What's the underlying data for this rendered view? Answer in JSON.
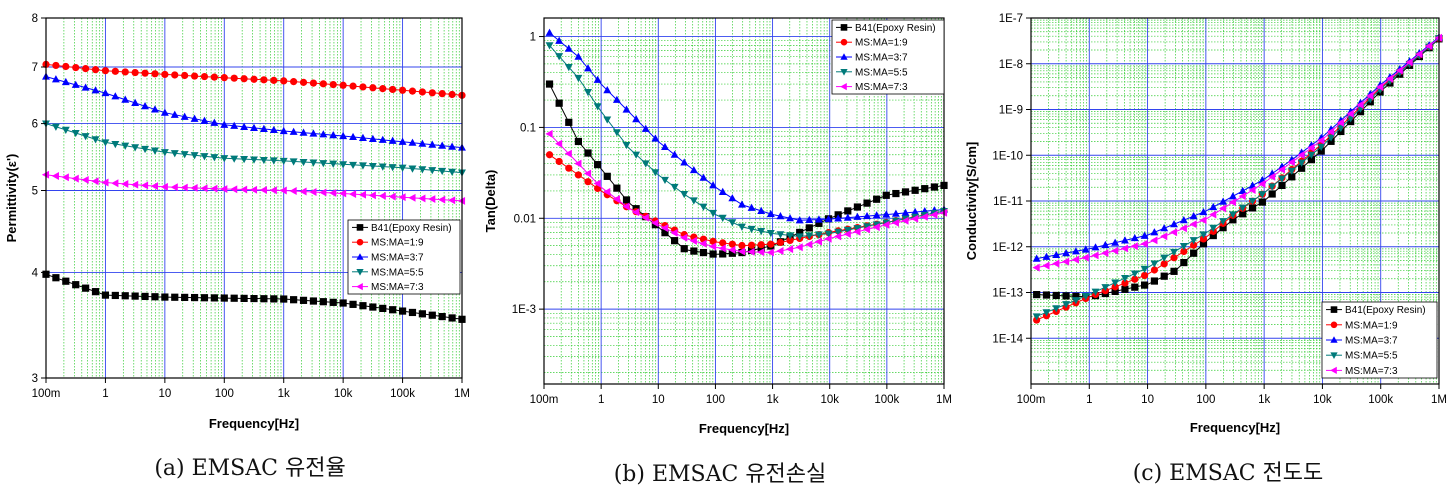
{
  "chart_data": [
    {
      "type": "line",
      "caption": "(a) EMSAC 유전율",
      "xlabel": "Frequency[Hz]",
      "ylabel": "Permittivity(ε')",
      "x_scale": "log",
      "y_scale": "log",
      "xlim": [
        0.1,
        1000000
      ],
      "ylim": [
        3,
        8
      ],
      "x_ticks": [
        {
          "v": 0.1,
          "label": "100m"
        },
        {
          "v": 1,
          "label": "1"
        },
        {
          "v": 10,
          "label": "10"
        },
        {
          "v": 100,
          "label": "100"
        },
        {
          "v": 1000,
          "label": "1k"
        },
        {
          "v": 10000,
          "label": "10k"
        },
        {
          "v": 100000,
          "label": "100k"
        },
        {
          "v": 1000000,
          "label": "1M"
        }
      ],
      "y_ticks": [
        {
          "v": 3,
          "label": "3"
        },
        {
          "v": 4,
          "label": "4"
        },
        {
          "v": 5,
          "label": "5"
        },
        {
          "v": 6,
          "label": "6"
        },
        {
          "v": 7,
          "label": "7"
        },
        {
          "v": 8,
          "label": "8"
        }
      ],
      "legend_position": "middle-right",
      "grid": true,
      "series": [
        {
          "name": "B41(Epoxy Resin)",
          "color": "#000000",
          "marker": "square",
          "x": [
            0.1,
            1,
            10,
            100,
            1000,
            10000,
            100000,
            1000000
          ],
          "y": [
            3.98,
            3.76,
            3.74,
            3.73,
            3.72,
            3.68,
            3.6,
            3.52
          ]
        },
        {
          "name": "MS:MA=1:9",
          "color": "#ff0000",
          "marker": "circle",
          "x": [
            0.1,
            1,
            10,
            100,
            1000,
            10000,
            100000,
            1000000
          ],
          "y": [
            7.05,
            6.93,
            6.86,
            6.8,
            6.74,
            6.66,
            6.57,
            6.48
          ]
        },
        {
          "name": "MS:MA=3:7",
          "color": "#0000ff",
          "marker": "triangle-up",
          "x": [
            0.1,
            1,
            10,
            100,
            1000,
            10000,
            100000,
            1000000
          ],
          "y": [
            6.82,
            6.52,
            6.18,
            5.98,
            5.88,
            5.8,
            5.71,
            5.62
          ]
        },
        {
          "name": "MS:MA=5:5",
          "color": "#007a7a",
          "marker": "triangle-down",
          "x": [
            0.1,
            1,
            10,
            100,
            1000,
            10000,
            100000,
            1000000
          ],
          "y": [
            6.0,
            5.7,
            5.55,
            5.46,
            5.42,
            5.37,
            5.32,
            5.25
          ]
        },
        {
          "name": "MS:MA=7:3",
          "color": "#ff00ff",
          "marker": "triangle-left",
          "x": [
            0.1,
            1,
            10,
            100,
            1000,
            10000,
            100000,
            1000000
          ],
          "y": [
            5.22,
            5.11,
            5.05,
            5.02,
            5.0,
            4.96,
            4.91,
            4.86
          ]
        }
      ]
    },
    {
      "type": "line",
      "caption": "(b) EMSAC 유전손실",
      "xlabel": "Frequency[Hz]",
      "ylabel": "Tan(Delta)",
      "x_scale": "log",
      "y_scale": "log",
      "xlim": [
        0.1,
        1000000
      ],
      "ylim": [
        0.00015,
        1.6
      ],
      "x_ticks": [
        {
          "v": 0.1,
          "label": "100m"
        },
        {
          "v": 1,
          "label": "1"
        },
        {
          "v": 10,
          "label": "10"
        },
        {
          "v": 100,
          "label": "100"
        },
        {
          "v": 1000,
          "label": "1k"
        },
        {
          "v": 10000,
          "label": "10k"
        },
        {
          "v": 100000,
          "label": "100k"
        },
        {
          "v": 1000000,
          "label": "1M"
        }
      ],
      "y_ticks": [
        {
          "v": 0.001,
          "label": "1E-3"
        },
        {
          "v": 0.01,
          "label": "0.01"
        },
        {
          "v": 0.1,
          "label": "0.1"
        },
        {
          "v": 1,
          "label": "1"
        }
      ],
      "legend_position": "top-right",
      "grid": true,
      "series": [
        {
          "name": "B41(Epoxy Resin)",
          "color": "#000000",
          "marker": "square",
          "x": [
            0.125,
            0.4,
            1,
            3,
            10,
            30,
            100,
            300,
            1000,
            3000,
            10000,
            100000,
            1000000
          ],
          "y": [
            0.3,
            0.07,
            0.035,
            0.015,
            0.008,
            0.0045,
            0.004,
            0.0042,
            0.005,
            0.007,
            0.01,
            0.018,
            0.023
          ]
        },
        {
          "name": "MS:MA=1:9",
          "color": "#ff0000",
          "marker": "circle",
          "x": [
            0.125,
            0.4,
            1,
            3,
            10,
            30,
            100,
            300,
            1000,
            3000,
            10000,
            100000,
            1000000
          ],
          "y": [
            0.05,
            0.03,
            0.02,
            0.013,
            0.009,
            0.0065,
            0.0055,
            0.005,
            0.0052,
            0.006,
            0.007,
            0.009,
            0.012
          ]
        },
        {
          "name": "MS:MA=3:7",
          "color": "#0000ff",
          "marker": "triangle-up",
          "x": [
            0.125,
            0.4,
            1,
            3,
            10,
            30,
            100,
            300,
            1000,
            3000,
            10000,
            100000,
            1000000
          ],
          "y": [
            1.1,
            0.6,
            0.3,
            0.15,
            0.07,
            0.04,
            0.022,
            0.014,
            0.011,
            0.0095,
            0.0098,
            0.011,
            0.0125
          ]
        },
        {
          "name": "MS:MA=5:5",
          "color": "#007a7a",
          "marker": "triangle-down",
          "x": [
            0.125,
            0.4,
            1,
            3,
            10,
            30,
            100,
            300,
            1000,
            3000,
            10000,
            100000,
            1000000
          ],
          "y": [
            0.8,
            0.35,
            0.15,
            0.06,
            0.03,
            0.018,
            0.011,
            0.008,
            0.0068,
            0.0063,
            0.0068,
            0.009,
            0.012
          ]
        },
        {
          "name": "MS:MA=7:3",
          "color": "#ff00ff",
          "marker": "triangle-left",
          "x": [
            0.125,
            0.4,
            1,
            3,
            10,
            30,
            100,
            300,
            1000,
            3000,
            10000,
            100000,
            1000000
          ],
          "y": [
            0.085,
            0.04,
            0.022,
            0.013,
            0.0085,
            0.006,
            0.0048,
            0.0043,
            0.0042,
            0.0048,
            0.006,
            0.0085,
            0.0115
          ]
        }
      ]
    },
    {
      "type": "line",
      "caption": "(c) EMSAC 전도도",
      "xlabel": "Frequency[Hz]",
      "ylabel": "Conductivity[S/cm]",
      "x_scale": "log",
      "y_scale": "log",
      "xlim": [
        0.1,
        1000000
      ],
      "ylim": [
        1e-15,
        1e-07
      ],
      "x_ticks": [
        {
          "v": 0.1,
          "label": "100m"
        },
        {
          "v": 1,
          "label": "1"
        },
        {
          "v": 10,
          "label": "10"
        },
        {
          "v": 100,
          "label": "100"
        },
        {
          "v": 1000,
          "label": "1k"
        },
        {
          "v": 10000,
          "label": "10k"
        },
        {
          "v": 100000,
          "label": "100k"
        },
        {
          "v": 1000000,
          "label": "1M"
        }
      ],
      "y_ticks": [
        {
          "v": 1e-14,
          "label": "1E-14"
        },
        {
          "v": 1e-13,
          "label": "1E-13"
        },
        {
          "v": 1e-12,
          "label": "1E-12"
        },
        {
          "v": 1e-11,
          "label": "1E-11"
        },
        {
          "v": 1e-10,
          "label": "1E-10"
        },
        {
          "v": 1e-09,
          "label": "1E-9"
        },
        {
          "v": 1e-08,
          "label": "1E-8"
        },
        {
          "v": 1e-07,
          "label": "1E-7"
        }
      ],
      "legend_position": "bottom-right",
      "grid": true,
      "series": [
        {
          "name": "B41(Epoxy Resin)",
          "color": "#000000",
          "marker": "square",
          "x": [
            0.125,
            1,
            10,
            30,
            100,
            300,
            1000,
            10000,
            100000,
            1000000
          ],
          "y": [
            9e-14,
            8e-14,
            1.5e-13,
            3e-13,
            1.3e-12,
            4e-12,
            1e-11,
            1.3e-10,
            2.5e-09,
            3.5e-08
          ]
        },
        {
          "name": "MS:MA=1:9",
          "color": "#ff0000",
          "marker": "circle",
          "x": [
            0.125,
            1,
            10,
            30,
            100,
            300,
            1000,
            10000,
            100000,
            1000000
          ],
          "y": [
            2.5e-14,
            8e-14,
            2.5e-13,
            6e-13,
            1.6e-12,
            5e-12,
            1.5e-11,
            1.8e-10,
            3e-09,
            3.6e-08
          ]
        },
        {
          "name": "MS:MA=3:7",
          "color": "#0000ff",
          "marker": "triangle-up",
          "x": [
            0.125,
            1,
            10,
            100,
            1000,
            3000,
            10000,
            100000,
            1000000
          ],
          "y": [
            5.5e-13,
            9e-13,
            1.8e-12,
            6e-12,
            3e-11,
            8e-11,
            2.5e-10,
            3.5e-09,
            3.8e-08
          ]
        },
        {
          "name": "MS:MA=5:5",
          "color": "#007a7a",
          "marker": "triangle-down",
          "x": [
            0.125,
            1,
            10,
            100,
            1000,
            10000,
            100000,
            1000000
          ],
          "y": [
            3e-14,
            9e-14,
            3.5e-13,
            2e-12,
            1.5e-11,
            1.6e-10,
            2.8e-09,
            3.6e-08
          ]
        },
        {
          "name": "MS:MA=7:3",
          "color": "#ff00ff",
          "marker": "triangle-left",
          "x": [
            0.125,
            1,
            10,
            100,
            1000,
            10000,
            100000,
            1000000
          ],
          "y": [
            3.5e-13,
            6e-13,
            1.2e-12,
            4e-12,
            2.5e-11,
            2.2e-10,
            3.2e-09,
            3.7e-08
          ]
        }
      ]
    }
  ]
}
